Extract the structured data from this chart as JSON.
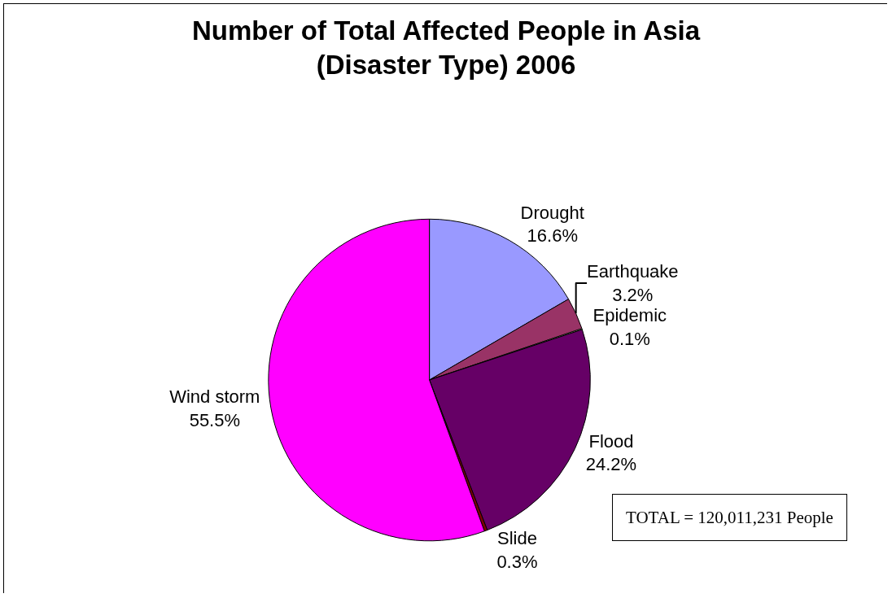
{
  "chart_data": {
    "type": "pie",
    "title": "Number of Total Affected People in Asia\n(Disaster Type) 2006",
    "categories": [
      "Drought",
      "Earthquake",
      "Epidemic",
      "Flood",
      "Slide",
      "Wind storm"
    ],
    "values": [
      16.6,
      3.2,
      0.1,
      24.2,
      0.3,
      55.5
    ],
    "value_labels": [
      "16.6%",
      "3.2%",
      "0.1%",
      "24.2%",
      "0.3%",
      "55.5%"
    ],
    "colors": [
      "#9999ff",
      "#993366",
      "#ffffcc",
      "#660066",
      "#800000",
      "#ff00ff"
    ],
    "annotations": [
      "TOTAL = 120,011,231 People"
    ],
    "legend": false
  }
}
